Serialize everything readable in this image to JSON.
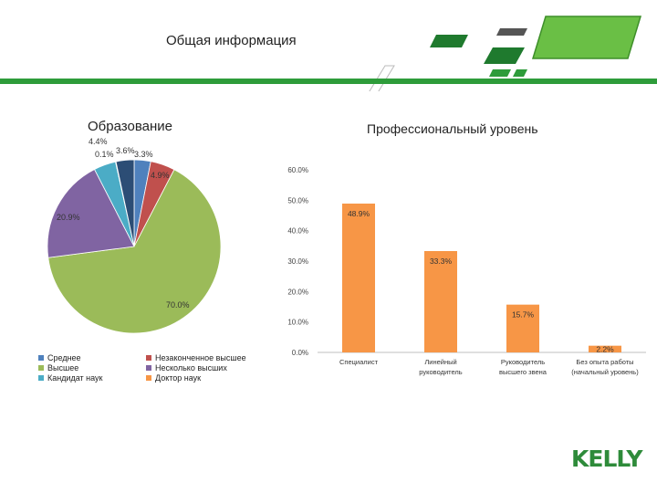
{
  "header": {
    "title": "Общая информация"
  },
  "logo": {
    "text": "KELLY"
  },
  "colors": {
    "brand_green": "#2e9c3a",
    "bar_orange": "#f79646"
  },
  "chart_data": [
    {
      "type": "pie",
      "title": "Образование",
      "slices": [
        {
          "label": "Среднее",
          "value": 3.3,
          "value_label": "3.3%",
          "color": "#4f81bd"
        },
        {
          "label": "Незаконченное высшее",
          "value": 4.9,
          "value_label": "4.9%",
          "color": "#c0504d"
        },
        {
          "label": "Высшее",
          "value": 70.0,
          "value_label": "70.0%",
          "color": "#9bbb59"
        },
        {
          "label": "Несколько высших",
          "value": 20.9,
          "value_label": "20.9%",
          "color": "#8064a2"
        },
        {
          "label": "Кандидат наук",
          "value": 4.4,
          "value_label": "4.4%",
          "color": "#4bacc6"
        },
        {
          "label": "Доктор наук",
          "value": 0.1,
          "value_label": "0.1%",
          "color": "#f79646"
        },
        {
          "label": "",
          "value": 3.6,
          "value_label": "3.6%",
          "color": "#2c4d75"
        }
      ],
      "legend": [
        {
          "label": "Среднее",
          "color": "#4f81bd"
        },
        {
          "label": "Незаконченное высшее",
          "color": "#c0504d"
        },
        {
          "label": "Высшее",
          "color": "#9bbb59"
        },
        {
          "label": "Несколько высших",
          "color": "#8064a2"
        },
        {
          "label": "Кандидат наук",
          "color": "#4bacc6"
        },
        {
          "label": "Доктор наук",
          "color": "#f79646"
        }
      ],
      "legend_position": "bottom"
    },
    {
      "type": "bar",
      "title": "Профессиональный уровень",
      "categories": [
        "Специалист",
        "Линейный руководитель",
        "Руководитель высшего звена",
        "Без опыта работы (начальный уровень)"
      ],
      "values": [
        48.9,
        33.3,
        15.7,
        2.2
      ],
      "value_labels": [
        "48.9%",
        "33.3%",
        "15.7%",
        "2.2%"
      ],
      "ylim": [
        0,
        60
      ],
      "yticks": [
        "0.0%",
        "10.0%",
        "20.0%",
        "30.0%",
        "40.0%",
        "50.0%",
        "60.0%"
      ],
      "grid": false,
      "color": "#f79646"
    }
  ]
}
